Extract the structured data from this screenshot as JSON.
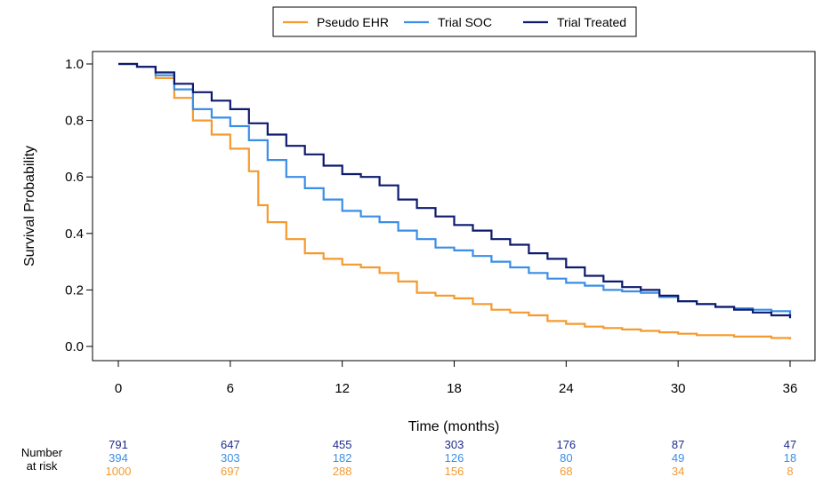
{
  "chart_data": {
    "type": "line",
    "subtype": "kaplan-meier",
    "xlabel": "Time (months)",
    "ylabel": "Survival Probability",
    "xlim": [
      0,
      36
    ],
    "ylim": [
      0,
      1
    ],
    "x_ticks": [
      "0",
      "6",
      "12",
      "18",
      "24",
      "30",
      "36"
    ],
    "y_ticks": [
      "0.0",
      "0.2",
      "0.4",
      "0.6",
      "0.8",
      "1.0"
    ],
    "grid": false,
    "legend_position": "top-center",
    "series": [
      {
        "name": "Pseudo EHR",
        "color": "#f59a2e",
        "x": [
          0,
          1,
          2,
          3,
          4,
          5,
          6,
          7,
          7.5,
          8,
          9,
          10,
          11,
          12,
          13,
          14,
          15,
          16,
          17,
          18,
          19,
          20,
          21,
          22,
          23,
          24,
          25,
          26,
          27,
          28,
          29,
          30,
          31,
          32,
          33,
          34,
          35,
          36
        ],
        "y": [
          1.0,
          0.99,
          0.95,
          0.88,
          0.8,
          0.75,
          0.7,
          0.62,
          0.5,
          0.44,
          0.38,
          0.33,
          0.31,
          0.29,
          0.28,
          0.26,
          0.23,
          0.19,
          0.18,
          0.17,
          0.15,
          0.13,
          0.12,
          0.11,
          0.09,
          0.08,
          0.07,
          0.065,
          0.06,
          0.055,
          0.05,
          0.045,
          0.04,
          0.04,
          0.035,
          0.035,
          0.03,
          0.025
        ]
      },
      {
        "name": "Trial SOC",
        "color": "#3a8ee6",
        "x": [
          0,
          1,
          2,
          3,
          4,
          5,
          6,
          7,
          8,
          9,
          10,
          11,
          12,
          13,
          14,
          15,
          16,
          17,
          18,
          19,
          20,
          21,
          22,
          23,
          24,
          25,
          26,
          27,
          28,
          29,
          30,
          31,
          32,
          33,
          34,
          35,
          36
        ],
        "y": [
          1.0,
          0.99,
          0.96,
          0.91,
          0.84,
          0.81,
          0.78,
          0.73,
          0.66,
          0.6,
          0.56,
          0.52,
          0.48,
          0.46,
          0.44,
          0.41,
          0.38,
          0.35,
          0.34,
          0.32,
          0.3,
          0.28,
          0.26,
          0.24,
          0.225,
          0.215,
          0.2,
          0.195,
          0.19,
          0.175,
          0.16,
          0.15,
          0.14,
          0.135,
          0.13,
          0.125,
          0.11
        ]
      },
      {
        "name": "Trial Treated",
        "color": "#0d1a6e",
        "x": [
          0,
          1,
          2,
          3,
          4,
          5,
          6,
          7,
          8,
          9,
          10,
          11,
          12,
          13,
          14,
          15,
          16,
          17,
          18,
          19,
          20,
          21,
          22,
          23,
          24,
          25,
          26,
          27,
          28,
          29,
          30,
          31,
          32,
          33,
          34,
          35,
          36
        ],
        "y": [
          1.0,
          0.99,
          0.97,
          0.93,
          0.9,
          0.87,
          0.84,
          0.79,
          0.75,
          0.71,
          0.68,
          0.64,
          0.61,
          0.6,
          0.57,
          0.52,
          0.49,
          0.46,
          0.43,
          0.41,
          0.38,
          0.36,
          0.33,
          0.31,
          0.28,
          0.25,
          0.23,
          0.21,
          0.2,
          0.18,
          0.16,
          0.15,
          0.14,
          0.13,
          0.12,
          0.11,
          0.1
        ]
      }
    ],
    "risk_table": {
      "title_line1": "Number",
      "title_line2": "at risk",
      "times": [
        0,
        6,
        12,
        18,
        24,
        30,
        36
      ],
      "rows": [
        {
          "color": "#1e2a8a",
          "values": [
            "791",
            "647",
            "455",
            "303",
            "176",
            "87",
            "47"
          ]
        },
        {
          "color": "#3a8ee6",
          "values": [
            "394",
            "303",
            "182",
            "126",
            "80",
            "49",
            "18"
          ]
        },
        {
          "color": "#f59a2e",
          "values": [
            "1000",
            "697",
            "288",
            "156",
            "68",
            "34",
            "8"
          ]
        }
      ]
    }
  }
}
